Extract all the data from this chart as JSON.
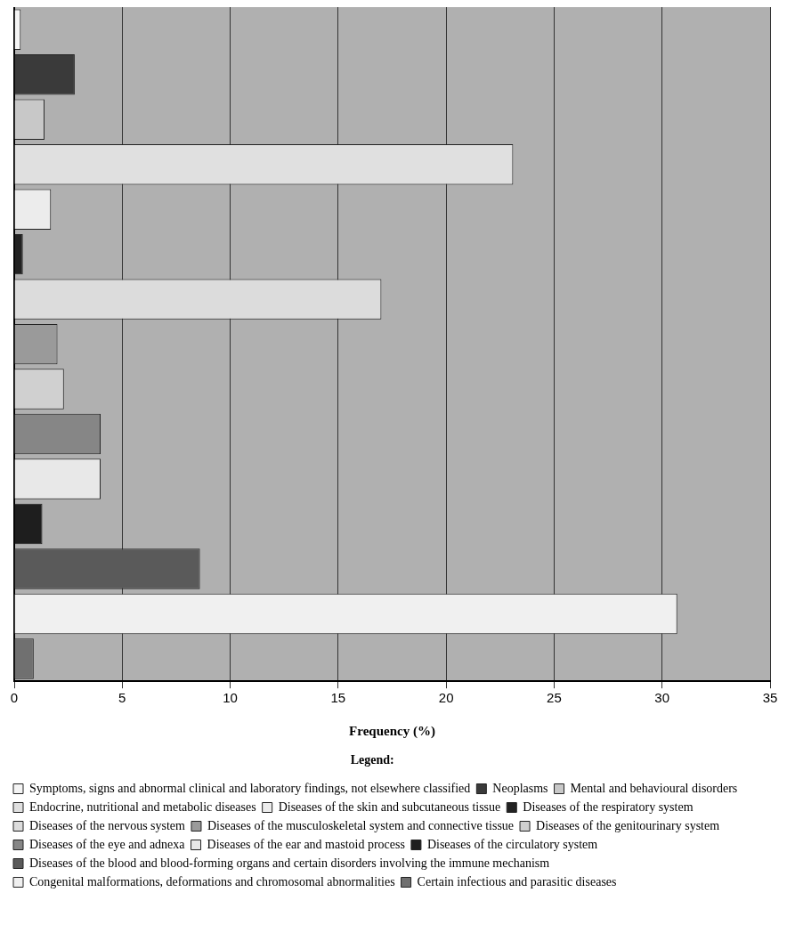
{
  "chart_data": {
    "type": "bar",
    "orientation": "horizontal",
    "xlabel": "Frequency (%)",
    "legend_title": "Legend:",
    "legend": "bottom",
    "tick_labels": "x",
    "grid": "x",
    "categories": [
      null,
      null,
      null,
      null,
      null,
      null,
      null,
      null,
      null,
      null,
      null,
      null,
      null,
      null,
      null
    ],
    "series": [
      {
        "name": "Symptoms, signs and abnormal clinical and laboratory findings, not elsewhere classified",
        "color": "#f4f4f4",
        "values": [
          0.3,
          null,
          null,
          null,
          null,
          null,
          null,
          null,
          null,
          null,
          null,
          null,
          null,
          null,
          null
        ]
      },
      {
        "name": "Neoplasms",
        "color": "#3a3a3a",
        "values": [
          null,
          2.8,
          null,
          null,
          null,
          null,
          null,
          null,
          null,
          null,
          null,
          null,
          null,
          null,
          null
        ]
      },
      {
        "name": "Mental and behavioural disorders",
        "color": "#c8c8c8",
        "values": [
          null,
          null,
          1.4,
          null,
          null,
          null,
          null,
          null,
          null,
          null,
          null,
          null,
          null,
          null,
          null
        ]
      },
      {
        "name": "Endocrine, nutritional and metabolic diseases",
        "color": "#e0e0e0",
        "values": [
          null,
          null,
          null,
          23.1,
          null,
          null,
          null,
          null,
          null,
          null,
          null,
          null,
          null,
          null,
          null
        ]
      },
      {
        "name": "Diseases of the skin and subcutaneous tissue",
        "color": "#ececec",
        "values": [
          null,
          null,
          null,
          null,
          1.7,
          null,
          null,
          null,
          null,
          null,
          null,
          null,
          null,
          null,
          null
        ]
      },
      {
        "name": "Diseases of the respiratory system",
        "color": "#222222",
        "values": [
          null,
          null,
          null,
          null,
          null,
          0.4,
          null,
          null,
          null,
          null,
          null,
          null,
          null,
          null,
          null
        ]
      },
      {
        "name": "Diseases of the nervous system",
        "color": "#dcdcdc",
        "values": [
          null,
          null,
          null,
          null,
          null,
          null,
          17.0,
          null,
          null,
          null,
          null,
          null,
          null,
          null,
          null
        ]
      },
      {
        "name": "Diseases of the musculoskeletal system and connective tissue",
        "color": "#9a9a9a",
        "values": [
          null,
          null,
          null,
          null,
          null,
          null,
          null,
          2.0,
          null,
          null,
          null,
          null,
          null,
          null,
          null
        ]
      },
      {
        "name": "Diseases of the genitourinary system",
        "color": "#d0d0d0",
        "values": [
          null,
          null,
          null,
          null,
          null,
          null,
          null,
          null,
          2.3,
          null,
          null,
          null,
          null,
          null,
          null
        ]
      },
      {
        "name": "Diseases of the eye and adnexa",
        "color": "#868686",
        "values": [
          null,
          null,
          null,
          null,
          null,
          null,
          null,
          null,
          null,
          4.0,
          null,
          null,
          null,
          null,
          null
        ]
      },
      {
        "name": "Diseases of the ear and mastoid process",
        "color": "#e8e8e8",
        "values": [
          null,
          null,
          null,
          null,
          null,
          null,
          null,
          null,
          null,
          null,
          4.0,
          null,
          null,
          null,
          null
        ]
      },
      {
        "name": "Diseases of the circulatory system",
        "color": "#1e1e1e",
        "values": [
          null,
          null,
          null,
          null,
          null,
          null,
          null,
          null,
          null,
          null,
          null,
          1.3,
          null,
          null,
          null
        ]
      },
      {
        "name": "Diseases of the blood and blood-forming organs and certain disorders involving the immune mechanism",
        "color": "#5a5a5a",
        "values": [
          null,
          null,
          null,
          null,
          null,
          null,
          null,
          null,
          null,
          null,
          null,
          null,
          8.6,
          null,
          null
        ]
      },
      {
        "name": "Congenital malformations, deformations and chromosomal abnormalities",
        "color": "#f0f0f0",
        "values": [
          null,
          null,
          null,
          null,
          null,
          null,
          null,
          null,
          null,
          null,
          null,
          null,
          null,
          30.7,
          null
        ]
      },
      {
        "name": "Certain infectious and parasitic diseases",
        "color": "#707070",
        "values": [
          null,
          null,
          null,
          null,
          null,
          null,
          null,
          null,
          null,
          null,
          null,
          null,
          null,
          null,
          0.9
        ]
      }
    ],
    "xlim": [
      0,
      35
    ],
    "xticks": [
      0,
      5,
      10,
      15,
      20,
      25,
      30,
      35
    ]
  }
}
